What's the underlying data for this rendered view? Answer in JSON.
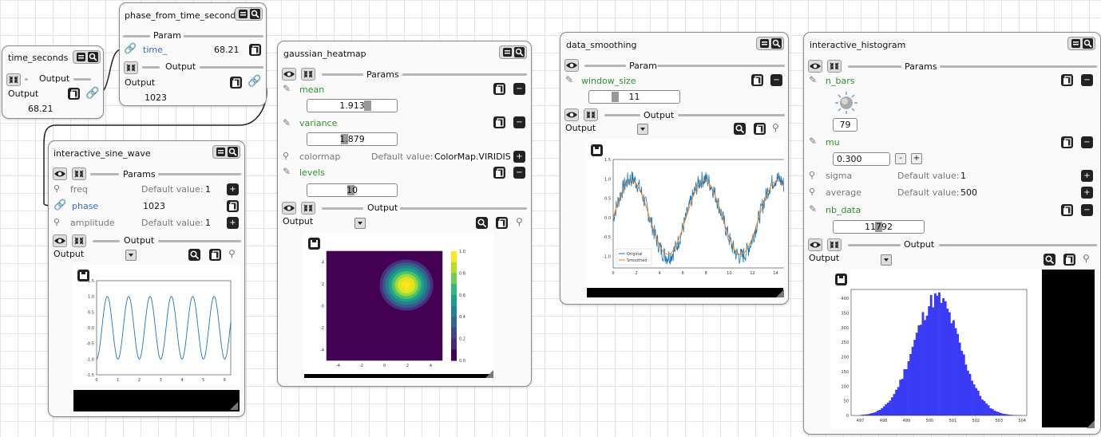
{
  "nodes": {
    "time_seconds": {
      "title": "time_seconds",
      "section": "Output",
      "out_label": "Output",
      "out_value": "68.21"
    },
    "phase": {
      "title": "phase_from_time_seconds",
      "param_section": "Param",
      "param_name": "time_",
      "param_value": "68.21",
      "out_section": "Output",
      "out_label": "Output",
      "out_value": "1023"
    },
    "sine": {
      "title": "interactive_sine_wave",
      "params_section": "Params",
      "params": [
        {
          "name": "freq",
          "default_label": "Default value:",
          "default_value": "1"
        },
        {
          "name": "phase",
          "value": "1023"
        },
        {
          "name": "amplitude",
          "default_label": "Default value:",
          "default_value": "1"
        }
      ],
      "out_section": "Output",
      "out_label": "Output"
    },
    "heatmap": {
      "title": "gaussian_heatmap",
      "params_section": "Params",
      "mean_label": "mean",
      "mean_value": "1.913",
      "variance_label": "variance",
      "variance_value": "1.879",
      "colormap_label": "colormap",
      "colormap_default_label": "Default value:",
      "colormap_default": "ColorMap.VIRIDIS",
      "levels_label": "levels",
      "levels_value": "10",
      "out_section": "Output",
      "out_label": "Output"
    },
    "smoothing": {
      "title": "data_smoothing",
      "param_section": "Param",
      "window_label": "window_size",
      "window_value": "11",
      "out_section": "Output",
      "out_label": "Output"
    },
    "histogram": {
      "title": "interactive_histogram",
      "params_section": "Params",
      "n_bars_label": "n_bars",
      "n_bars_value": "79",
      "mu_label": "mu",
      "mu_value": "0.300",
      "minus": "-",
      "plus": "+",
      "sigma_label": "sigma",
      "sigma_default_label": "Default value:",
      "sigma_default": "1",
      "average_label": "average",
      "average_default_label": "Default value:",
      "average_default": "500",
      "nb_data_label": "nb_data",
      "nb_data_value": "11792",
      "out_section": "Output",
      "out_label": "Output"
    }
  },
  "colors": {
    "green_param": "#2f8f2f",
    "blue_link": "#3a6bc8",
    "node_border": "#8a8a8a",
    "histogram_bar": "#3b3bf5",
    "sine_line": "#1f77b4",
    "smoothed_line": "#ff7f0e"
  },
  "chart_data": [
    {
      "type": "line",
      "name": "sine_wave",
      "series": [
        {
          "values_fn": "sin(2*pi*x)"
        }
      ],
      "xticks": [
        "0",
        "1",
        "2",
        "3",
        "4",
        "5",
        "6"
      ],
      "yticks": [
        "1.5",
        "1.0",
        "0.5",
        "0.0",
        "-0.5",
        "-1.0",
        "-1.5"
      ],
      "xlim": [
        0,
        6.28
      ],
      "ylim": [
        -1.5,
        1.5
      ]
    },
    {
      "type": "heatmap",
      "name": "gaussian_heatmap",
      "xticks": [
        "-4",
        "-2",
        "0",
        "2",
        "4"
      ],
      "yticks": [
        "4",
        "2",
        "0",
        "-2",
        "-4"
      ],
      "colorbar_ticks": [
        "1.0",
        "0.8",
        "0.6",
        "0.4",
        "0.2",
        "0.0"
      ],
      "center": [
        1.9,
        1.9
      ],
      "xlim": [
        -5,
        5
      ],
      "ylim": [
        -5,
        5
      ]
    },
    {
      "type": "line",
      "name": "data_smoothing",
      "series": [
        {
          "name": "Original"
        },
        {
          "name": "Smoothed"
        }
      ],
      "xticks": [
        "0",
        "2",
        "4",
        "6",
        "8",
        "10",
        "12",
        "14"
      ],
      "yticks": [
        "1.5",
        "1.0",
        "0.5",
        "0.0",
        "-0.5",
        "-1.0"
      ],
      "xlim": [
        0,
        15
      ],
      "ylim": [
        -1.3,
        1.5
      ]
    },
    {
      "type": "bar",
      "name": "histogram",
      "xticks": [
        "497",
        "498",
        "499",
        "500",
        "501",
        "502",
        "503",
        "504"
      ],
      "yticks": [
        "400",
        "350",
        "300",
        "250",
        "200",
        "150",
        "100",
        "50",
        "0"
      ],
      "xlim": [
        496.6,
        504.2
      ],
      "ylim": [
        0,
        430
      ],
      "mean": 500.3,
      "sd": 1,
      "bars": 79
    }
  ]
}
